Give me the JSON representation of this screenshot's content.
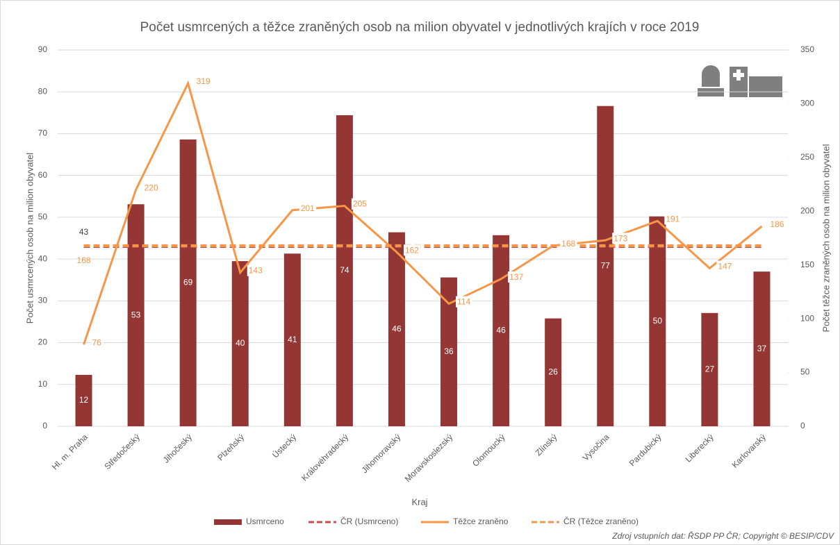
{
  "chart_data": {
    "type": "bar_line",
    "title": "Počet usmrcených a těžce zraněných osob na milion obyvatel v jednotlivých krajích v roce 2019",
    "x_label": "Kraj",
    "y_label": "Počet usmrcených osob na milion obyvatel",
    "y2_label": "Počet těžce zraněných osob na milion obyvatel",
    "source": "Zdroj vstupních dat: ŘSDP PP ČR; Copyright © BESIP/CDV",
    "categories": [
      "Hl. m. Praha",
      "Středočeský",
      "Jihočeský",
      "Plzeňský",
      "Ústecký",
      "Královéhradecký",
      "Jihomoravský",
      "Moravskoslezský",
      "Olomoucký",
      "Zlínský",
      "Vysočina",
      "Pardubický",
      "Liberecký",
      "Karlovarský"
    ],
    "series": [
      {
        "name": "Usmrceno",
        "type": "bar",
        "color": "#943634",
        "values": [
          12.3,
          53.1,
          68.6,
          39.5,
          41.3,
          74.4,
          46.4,
          35.6,
          45.7,
          25.8,
          76.6,
          50.2,
          27.1,
          37.0
        ],
        "value_labels": [
          "12",
          "53",
          "69",
          "40",
          "41",
          "74",
          "46",
          "36",
          "46",
          "26",
          "77",
          "50",
          "27",
          "37"
        ]
      },
      {
        "name": "ČR (Usmrceno)",
        "type": "hline",
        "color": "#c0504d",
        "value": 43
      },
      {
        "name": "Těžce zraněno",
        "type": "line",
        "axis": "y2",
        "color": "#f79646",
        "values": [
          76,
          220,
          319,
          143,
          201,
          205,
          162,
          114,
          137,
          168,
          173,
          191,
          147,
          186
        ]
      },
      {
        "name": "ČR (Těžce zraněno)",
        "type": "hline",
        "axis": "y2",
        "color": "#f79646",
        "value": 168
      }
    ],
    "ylim": [
      0,
      90
    ],
    "yticks": [
      0,
      10,
      20,
      30,
      40,
      50,
      60,
      70,
      80,
      90
    ],
    "y2lim": [
      0,
      350
    ],
    "y2ticks": [
      0,
      50,
      100,
      150,
      200,
      250,
      300,
      350
    ],
    "legend": "bottom"
  }
}
